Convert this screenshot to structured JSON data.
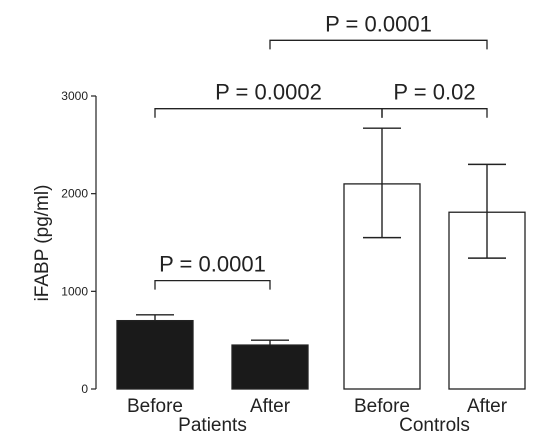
{
  "chart_data": {
    "type": "bar",
    "ylabel": "iFABP (pg/ml)",
    "xlabel": "",
    "ylim": [
      0,
      3000
    ],
    "yticks": [
      0,
      1000,
      2000,
      3000
    ],
    "grid": false,
    "categories": [
      "Before",
      "After",
      "Before",
      "After"
    ],
    "groups": [
      {
        "label": "Patients",
        "categories": [
          0,
          1
        ]
      },
      {
        "label": "Controls",
        "categories": [
          2,
          3
        ]
      }
    ],
    "values": [
      700,
      450,
      2100,
      1810
    ],
    "error_upper": [
      760,
      500,
      2670,
      2300
    ],
    "error_lower": [
      700,
      450,
      1550,
      1340
    ],
    "bar_fills": [
      "#1a1a1a",
      "#1a1a1a",
      "#ffffff",
      "#ffffff"
    ],
    "comparisons": [
      {
        "from": 0,
        "to": 1,
        "label": "P = 0.0001",
        "y": 1110
      },
      {
        "from": 0,
        "to": 2,
        "label": "P = 0.0002",
        "y": 2870
      },
      {
        "from": 2,
        "to": 3,
        "label": "P = 0.02",
        "y": 2870
      },
      {
        "from": 1,
        "to": 3,
        "label": "P = 0.0001",
        "y": 3570
      }
    ]
  }
}
